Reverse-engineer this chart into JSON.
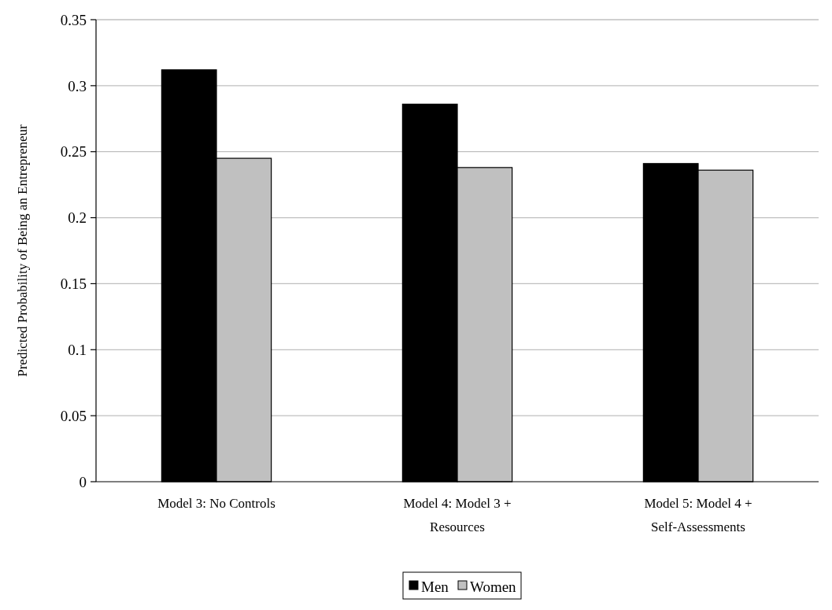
{
  "chart_data": {
    "type": "bar",
    "ylabel": "Predicted Probability of Being an Entrepreneur",
    "categories": [
      "Model 3: No Controls",
      "Model 4: Model 3 + Resources",
      "Model 5: Model 4 + Self-Assessments"
    ],
    "series": [
      {
        "name": "Men",
        "color": "#000000",
        "values": [
          0.312,
          0.286,
          0.241
        ]
      },
      {
        "name": "Women",
        "color": "#c0c0c0",
        "values": [
          0.245,
          0.238,
          0.236
        ]
      }
    ],
    "ylim": [
      0,
      0.35
    ],
    "yticks": [
      0,
      0.05,
      0.1,
      0.15,
      0.2,
      0.25,
      0.3,
      0.35
    ],
    "grid": "y",
    "legend": "bottom"
  }
}
